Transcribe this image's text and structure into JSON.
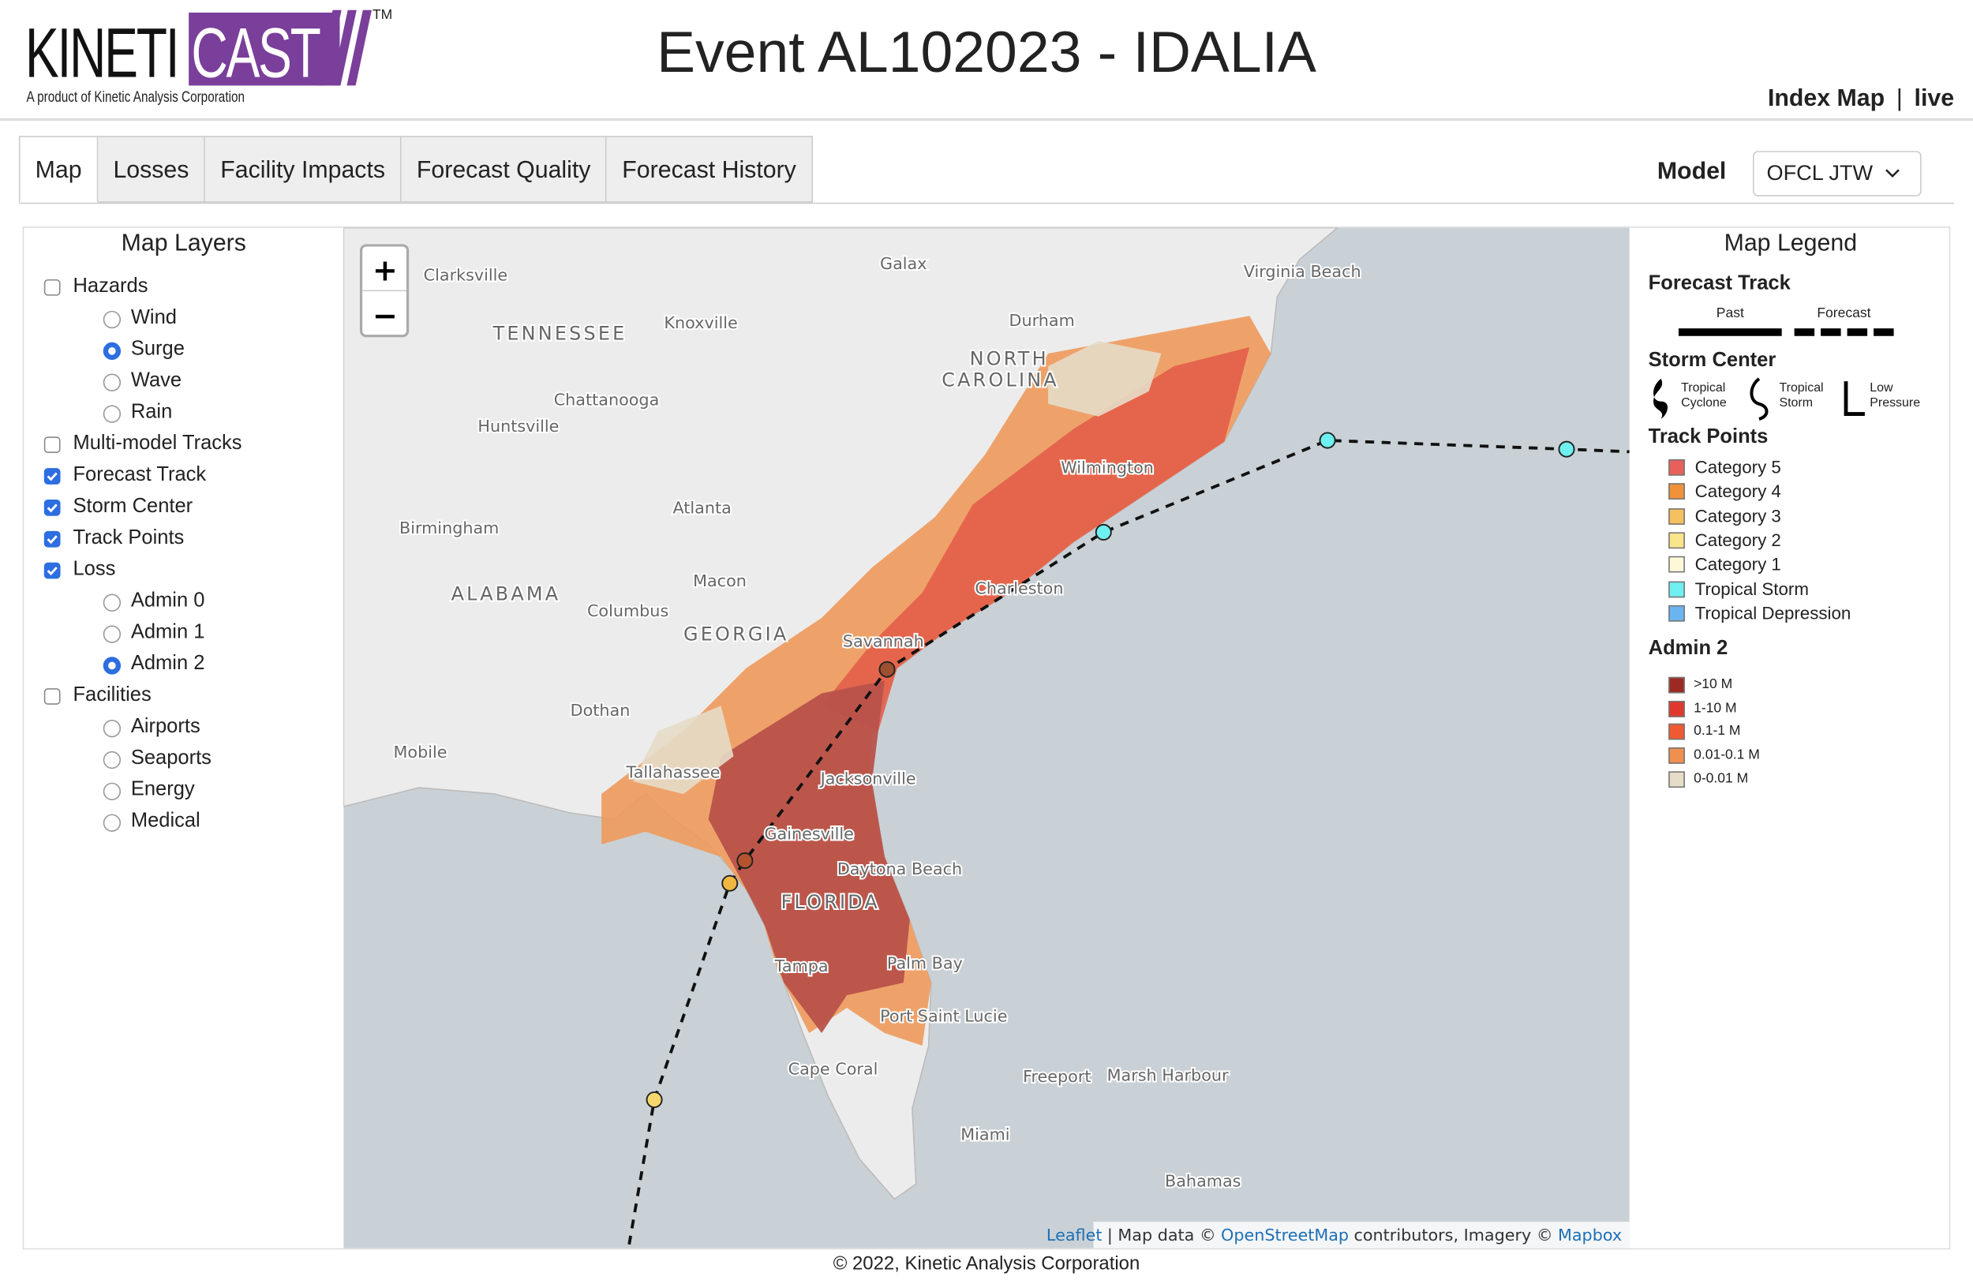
{
  "header": {
    "logo_main": "KINETI",
    "logo_accent": "CAST",
    "trademark": "TM",
    "tagline": "A product of Kinetic Analysis Corporation",
    "title": "Event AL102023 - IDALIA",
    "links": [
      "Index Map",
      "live"
    ],
    "link_separator": "|"
  },
  "tabs": {
    "items": [
      "Map",
      "Losses",
      "Facility Impacts",
      "Forecast Quality",
      "Forecast History"
    ],
    "active": 0
  },
  "model": {
    "label": "Model",
    "selected": "OFCL JTW"
  },
  "layers": {
    "title": "Map Layers",
    "items": [
      {
        "label": "Hazards",
        "kind": "checkbox",
        "checked": false
      },
      {
        "label": "Wind",
        "kind": "radio",
        "checked": false
      },
      {
        "label": "Surge",
        "kind": "radio",
        "checked": true
      },
      {
        "label": "Wave",
        "kind": "radio",
        "checked": false
      },
      {
        "label": "Rain",
        "kind": "radio",
        "checked": false
      },
      {
        "label": "Multi-model Tracks",
        "kind": "checkbox",
        "checked": false
      },
      {
        "label": "Forecast Track",
        "kind": "checkbox",
        "checked": true
      },
      {
        "label": "Storm Center",
        "kind": "checkbox",
        "checked": true
      },
      {
        "label": "Track Points",
        "kind": "checkbox",
        "checked": true
      },
      {
        "label": "Loss",
        "kind": "checkbox",
        "checked": true
      },
      {
        "label": "Admin 0",
        "kind": "radio",
        "checked": false
      },
      {
        "label": "Admin 1",
        "kind": "radio",
        "checked": false
      },
      {
        "label": "Admin 2",
        "kind": "radio",
        "checked": true
      },
      {
        "label": "Facilities",
        "kind": "checkbox",
        "checked": false
      },
      {
        "label": "Airports",
        "kind": "radio",
        "checked": false
      },
      {
        "label": "Seaports",
        "kind": "radio",
        "checked": false
      },
      {
        "label": "Energy",
        "kind": "radio",
        "checked": false
      },
      {
        "label": "Medical",
        "kind": "radio",
        "checked": false
      }
    ]
  },
  "map": {
    "zoom_in": "+",
    "zoom_out": "−",
    "places": [
      "Clarksville",
      "Galax",
      "Virginia Beach",
      "TENNESSEE",
      "Knoxville",
      "Durham",
      "NORTH",
      "CAROLINA",
      "Chattanooga",
      "Huntsville",
      "Atlanta",
      "Birmingham",
      "ALABAMA",
      "Macon",
      "Columbus",
      "GEORGIA",
      "Savannah",
      "Charleston",
      "Wilmington",
      "Dothan",
      "Mobile",
      "Tallahassee",
      "Jacksonville",
      "Gainesville",
      "Daytona Beach",
      "FLORIDA",
      "Tampa",
      "Palm Bay",
      "Port Saint Lucie",
      "Cape Coral",
      "Freeport",
      "Marsh Harbour",
      "Miami",
      "Bahamas"
    ],
    "attribution": {
      "leaflet": "Leaflet",
      "text1": "| Map data ©",
      "osm": "OpenStreetMap",
      "text2": "contributors, Imagery ©",
      "mapbox": "Mapbox"
    }
  },
  "legend": {
    "title": "Map Legend",
    "forecast_track": {
      "title": "Forecast Track",
      "past": "Past",
      "forecast": "Forecast"
    },
    "storm_center": {
      "title": "Storm Center",
      "items": [
        [
          "Tropical",
          "Cyclone"
        ],
        [
          "Tropical",
          "Storm"
        ],
        [
          "Low",
          "Pressure"
        ]
      ]
    },
    "track_points": {
      "title": "Track Points",
      "items": [
        {
          "label": "Category 5",
          "color": "#e8605a"
        },
        {
          "label": "Category 4",
          "color": "#f0923a"
        },
        {
          "label": "Category 3",
          "color": "#f5c060"
        },
        {
          "label": "Category 2",
          "color": "#fbe58a"
        },
        {
          "label": "Category 1",
          "color": "#fdf8d8"
        },
        {
          "label": "Tropical Storm",
          "color": "#6ff0f0"
        },
        {
          "label": "Tropical Depression",
          "color": "#6ab4f0"
        }
      ]
    },
    "admin2": {
      "title": "Admin 2",
      "items": [
        {
          "label": ">10 M",
          "color": "#9c2a22"
        },
        {
          "label": "1-10 M",
          "color": "#e0382c"
        },
        {
          "label": "0.1-1 M",
          "color": "#ef5a32"
        },
        {
          "label": "0.01-0.1 M",
          "color": "#f09050"
        },
        {
          "label": "0-0.01 M",
          "color": "#e6dcc8"
        }
      ]
    }
  },
  "footer": "© 2022, Kinetic Analysis Corporation"
}
